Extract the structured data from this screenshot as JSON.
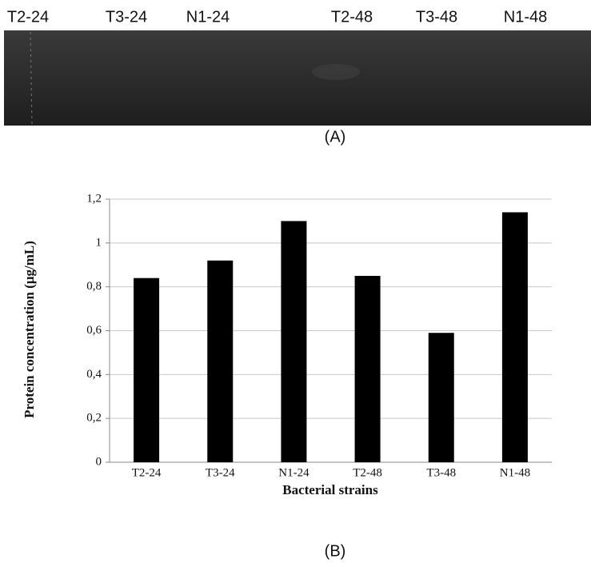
{
  "gel": {
    "lanes": [
      "T2-24",
      "T3-24",
      "N1-24",
      "T2-48",
      "T3-48",
      "N1-48"
    ],
    "caption": "(A)"
  },
  "chart_data": {
    "type": "bar",
    "y_label": "Protein concentration (μg/mL)",
    "x_label": "Bacterial strains",
    "categories": [
      "T2-24",
      "T3-24",
      "N1-24",
      "T2-48",
      "T3-48",
      "N1-48"
    ],
    "values": [
      0.84,
      0.92,
      1.1,
      0.85,
      0.59,
      1.14
    ],
    "color": "#000000",
    "ylim": [
      0,
      1.2
    ],
    "yticks": [
      0,
      {
        "value": 0.2,
        "label": "0,2"
      },
      {
        "value": 0.4,
        "label": "0,4"
      },
      {
        "value": 0.6,
        "label": "0,6"
      },
      {
        "value": 0.8,
        "label": "0,8"
      },
      1,
      {
        "value": 1.2,
        "label": "1,2"
      }
    ],
    "grid": true
  },
  "caption_b": "(B)"
}
